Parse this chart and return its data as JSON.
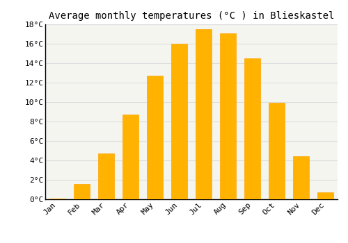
{
  "months": [
    "Jan",
    "Feb",
    "Mar",
    "Apr",
    "May",
    "Jun",
    "Jul",
    "Aug",
    "Sep",
    "Oct",
    "Nov",
    "Dec"
  ],
  "values": [
    0.1,
    1.6,
    4.7,
    8.7,
    12.7,
    16.0,
    17.5,
    17.1,
    14.5,
    9.9,
    4.4,
    0.7
  ],
  "bar_color": "#FFB300",
  "bar_edge_color": "#FFA500",
  "title": "Average monthly temperatures (°C ) in Blieskastel",
  "ylim": [
    0,
    18
  ],
  "ytick_step": 2,
  "background_color": "#FFFFFF",
  "plot_bg_color": "#F5F5F0",
  "grid_color": "#DDDDDD",
  "title_fontsize": 10,
  "tick_fontsize": 8,
  "font_family": "monospace"
}
